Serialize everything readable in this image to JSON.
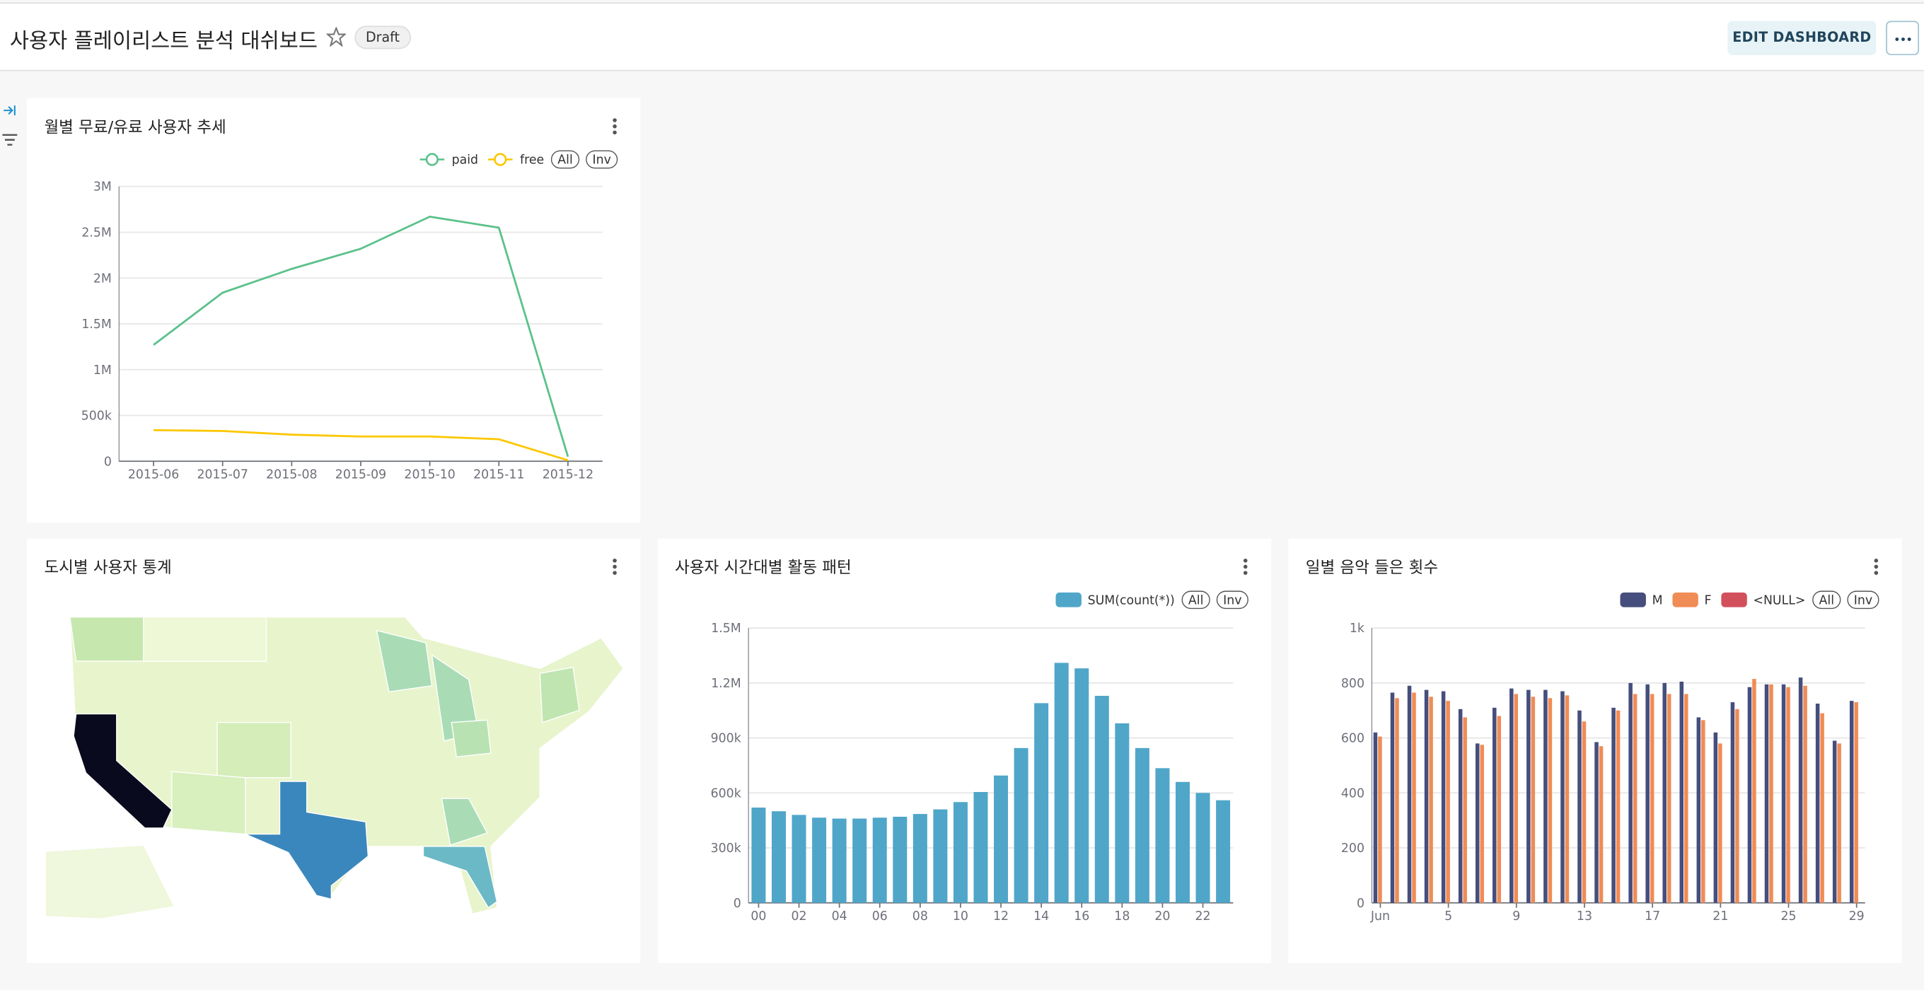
{
  "header": {
    "title": "사용자 플레이리스트 분석 대쉬보드",
    "status": "Draft",
    "edit_button": "EDIT DASHBOARD"
  },
  "chart_data": [
    {
      "type": "line",
      "title": "월별 무료/유료 사용자 추세",
      "categories": [
        "2015-06",
        "2015-07",
        "2015-08",
        "2015-09",
        "2015-10",
        "2015-11",
        "2015-12"
      ],
      "series": [
        {
          "name": "paid",
          "color": "#5ac189",
          "values": [
            1270000,
            1840000,
            2100000,
            2320000,
            2670000,
            2550000,
            50000
          ]
        },
        {
          "name": "free",
          "color": "#fcc700",
          "values": [
            340000,
            330000,
            290000,
            270000,
            270000,
            240000,
            10000
          ]
        }
      ],
      "legend_controls": [
        "All",
        "Inv"
      ],
      "ylim": [
        0,
        3000000
      ],
      "yticks": [
        0,
        {
          "value": 500000,
          "label": "500k"
        },
        {
          "value": 1000000,
          "label": "1M"
        },
        {
          "value": 1500000,
          "label": "1.5M"
        },
        {
          "value": 2000000,
          "label": "2M"
        },
        {
          "value": 2500000,
          "label": "2.5M"
        },
        {
          "value": 3000000,
          "label": "3M"
        }
      ],
      "grid": true
    },
    {
      "type": "map",
      "title": "도시별 사용자 통계"
    },
    {
      "type": "bar",
      "title": "사용자 시간대별 활동 패턴",
      "categories": [
        "00",
        null,
        "02",
        null,
        "04",
        null,
        "06",
        null,
        "08",
        null,
        "10",
        null,
        "12",
        null,
        "14",
        null,
        "16",
        null,
        "18",
        null,
        "20",
        null,
        "22",
        null
      ],
      "series": [
        {
          "name": "SUM(count(*))",
          "color": "#4fa6c9",
          "values": [
            520000,
            500000,
            480000,
            465000,
            460000,
            460000,
            465000,
            470000,
            485000,
            510000,
            550000,
            605000,
            695000,
            845000,
            1090000,
            1310000,
            1280000,
            1130000,
            980000,
            845000,
            735000,
            660000,
            600000,
            560000
          ]
        }
      ],
      "legend_controls": [
        "All",
        "Inv"
      ],
      "ylim": [
        0,
        1500000
      ],
      "yticks": [
        0,
        {
          "value": 300000,
          "label": "300k"
        },
        {
          "value": 600000,
          "label": "600k"
        },
        {
          "value": 900000,
          "label": "900k"
        },
        {
          "value": 1200000,
          "label": "1.2M"
        },
        {
          "value": 1500000,
          "label": "1.5M"
        }
      ],
      "grid": true
    },
    {
      "type": "bar",
      "title": "일별 음악 들은 횟수",
      "categories": [
        "Jun",
        null,
        null,
        null,
        "5",
        null,
        null,
        null,
        "9",
        null,
        null,
        null,
        "13",
        null,
        null,
        null,
        "17",
        null,
        null,
        null,
        "21",
        null,
        null,
        null,
        "25",
        null,
        null,
        null,
        "29"
      ],
      "series": [
        {
          "name": "M",
          "color": "#454e7c",
          "values": [
            620,
            765,
            790,
            775,
            770,
            705,
            580,
            710,
            780,
            775,
            775,
            770,
            700,
            585,
            710,
            800,
            795,
            800,
            805,
            675,
            620,
            730,
            785,
            795,
            795,
            820,
            725,
            590,
            735
          ]
        },
        {
          "name": "F",
          "color": "#f08c56",
          "values": [
            605,
            745,
            765,
            750,
            735,
            675,
            575,
            680,
            760,
            750,
            745,
            755,
            660,
            570,
            700,
            760,
            760,
            760,
            760,
            665,
            580,
            705,
            815,
            795,
            785,
            790,
            690,
            580,
            730
          ]
        },
        {
          "name": "<NULL>",
          "color": "#d1505c",
          "values": [
            0,
            0,
            0,
            0,
            0,
            0,
            0,
            0,
            0,
            0,
            0,
            0,
            0,
            0,
            0,
            0,
            0,
            0,
            0,
            0,
            0,
            0,
            0,
            0,
            0,
            0,
            0,
            0,
            0
          ]
        }
      ],
      "legend_controls": [
        "All",
        "Inv"
      ],
      "ylim": [
        0,
        1000
      ],
      "yticks": [
        0,
        200,
        400,
        600,
        800,
        {
          "value": 1000,
          "label": "1k"
        }
      ],
      "grid": true
    }
  ]
}
